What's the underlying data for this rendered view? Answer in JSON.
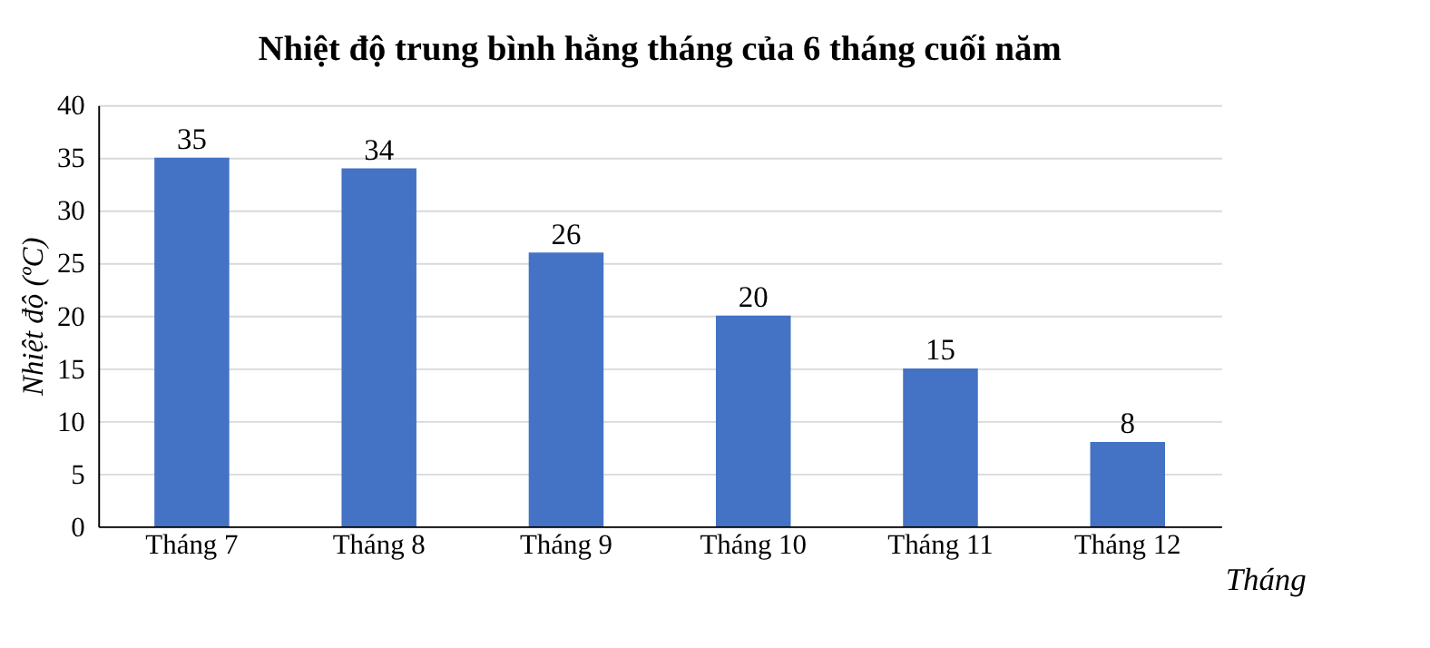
{
  "chart_data": {
    "type": "bar",
    "title": "Nhiệt độ trung bình hằng tháng của 6 tháng cuối năm",
    "xlabel": "Tháng",
    "ylabel": "Nhiệt độ (ºC)",
    "categories": [
      "Tháng 7",
      "Tháng 8",
      "Tháng 9",
      "Tháng 10",
      "Tháng 11",
      "Tháng 12"
    ],
    "values": [
      35,
      34,
      26,
      20,
      15,
      8
    ],
    "color": "#4472c4",
    "ylim": [
      0,
      40
    ],
    "yticks": [
      0,
      5,
      10,
      15,
      20,
      25,
      30,
      35,
      40
    ],
    "grid": "y",
    "data_labels": true
  }
}
